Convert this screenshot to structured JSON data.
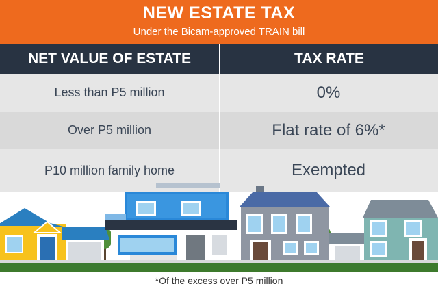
{
  "header": {
    "title": "NEW ESTATE TAX",
    "subtitle": "Under the Bicam-approved TRAIN bill"
  },
  "table": {
    "columns": [
      "NET VALUE OF ESTATE",
      "TAX RATE"
    ],
    "rows": [
      {
        "estate": "Less than P5 million",
        "rate": "0%"
      },
      {
        "estate": "Over P5 million",
        "rate": "Flat rate of 6%*"
      },
      {
        "estate": "P10 million family home",
        "rate": "Exempted"
      }
    ]
  },
  "footnote": "*Of the excess over P5 million",
  "illustration": {
    "icons": [
      "house-yellow-icon",
      "house-modern-blue-icon",
      "house-purple-icon",
      "house-teal-icon",
      "tree-icon"
    ],
    "colors": {
      "header": "#ee6a1e",
      "table_header": "#283342",
      "row_light": "#e6e6e6",
      "row_dark": "#d9d9d9",
      "grass": "#3d7a2c"
    }
  }
}
